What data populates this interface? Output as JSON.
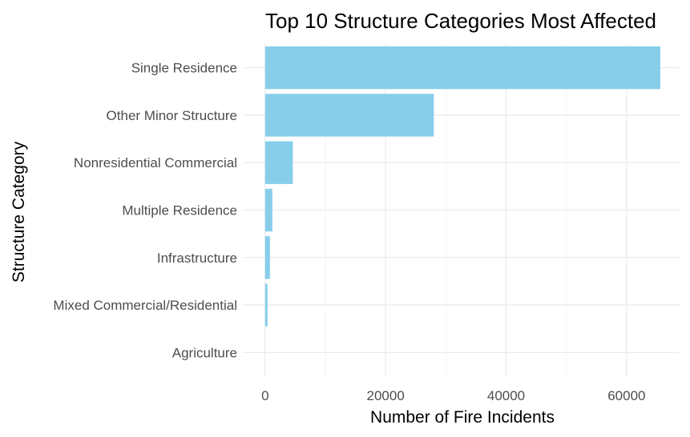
{
  "chart_data": {
    "type": "bar",
    "orientation": "horizontal",
    "title": "Top 10 Structure Categories Most Affected",
    "xlabel": "Number of Fire Incidents",
    "ylabel": "Structure Category",
    "categories": [
      "Single Residence",
      "Other Minor Structure",
      "Nonresidential Commercial",
      "Multiple Residence",
      "Infrastructure",
      "Mixed Commercial/Residential",
      "Agriculture"
    ],
    "values": [
      65600,
      28000,
      4600,
      1200,
      800,
      400,
      0
    ],
    "xlim": [
      -3700,
      68800
    ],
    "xticks": [
      0,
      20000,
      40000,
      60000
    ],
    "xtick_labels": [
      "0",
      "20000",
      "40000",
      "60000"
    ],
    "grid": true,
    "legend": "none",
    "bar_color": "#87ceeb",
    "grid_color": "#ebebeb"
  }
}
